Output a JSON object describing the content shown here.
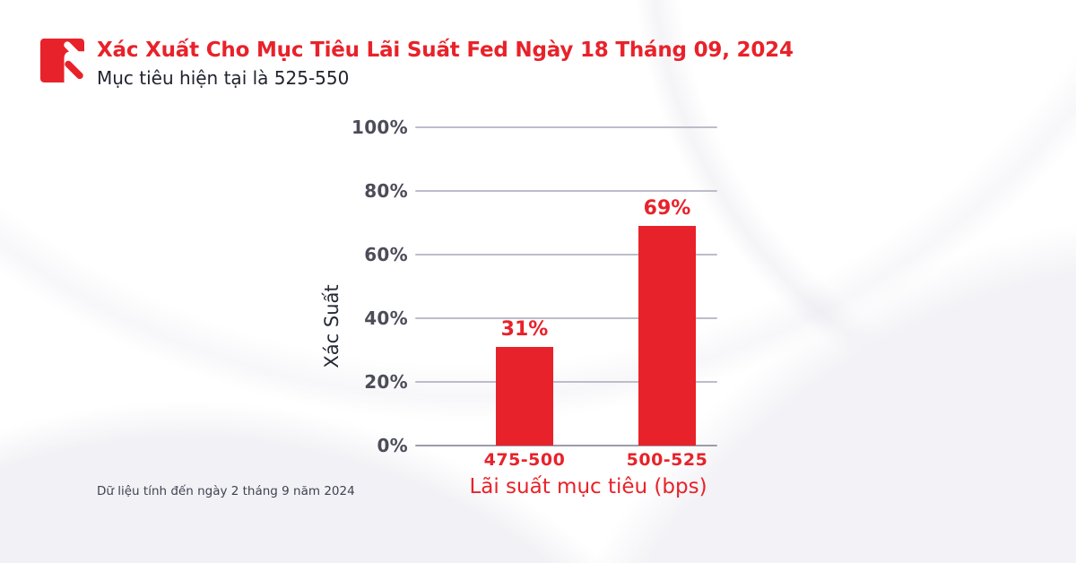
{
  "header": {
    "title": "Xác Xuất Cho Mục Tiêu Lãi Suất Fed Ngày 18 Tháng 09, 2024",
    "subtitle": "Mục tiêu hiện tại là 525-550"
  },
  "footer": {
    "note": "Dữ liệu tính đến ngày 2 tháng 9 năm 2024"
  },
  "brand": {
    "logo_icon": "red-square-double-slash-logo",
    "accent_red": "#E8222A"
  },
  "colors": {
    "bar_red": "#E8222A",
    "title_red": "#E8222A",
    "dark_text": "#21242F",
    "tick_text": "#4C4C5A",
    "gridline": "#BCBDCA",
    "background": "#FFFFFF"
  },
  "chart_data": {
    "type": "bar",
    "title": "Xác Xuất Cho Mục Tiêu Lãi Suất Fed Ngày 18 Tháng 09, 2024",
    "subtitle": "Mục tiêu hiện tại là 525-550",
    "categories": [
      "475-500",
      "500-525"
    ],
    "values": [
      31,
      69
    ],
    "value_labels": [
      "31%",
      "69%"
    ],
    "xlabel": "Lãi suất mục tiêu (bps)",
    "ylabel": "Xác Suất",
    "ylim": [
      0,
      100
    ],
    "yticks": [
      0,
      20,
      40,
      60,
      80,
      100
    ],
    "ytick_labels": [
      "0%",
      "20%",
      "40%",
      "60%",
      "80%",
      "100%"
    ],
    "grid": true,
    "legend": "none",
    "bar_color": "#E8222A",
    "label_color": "#E8222A"
  }
}
